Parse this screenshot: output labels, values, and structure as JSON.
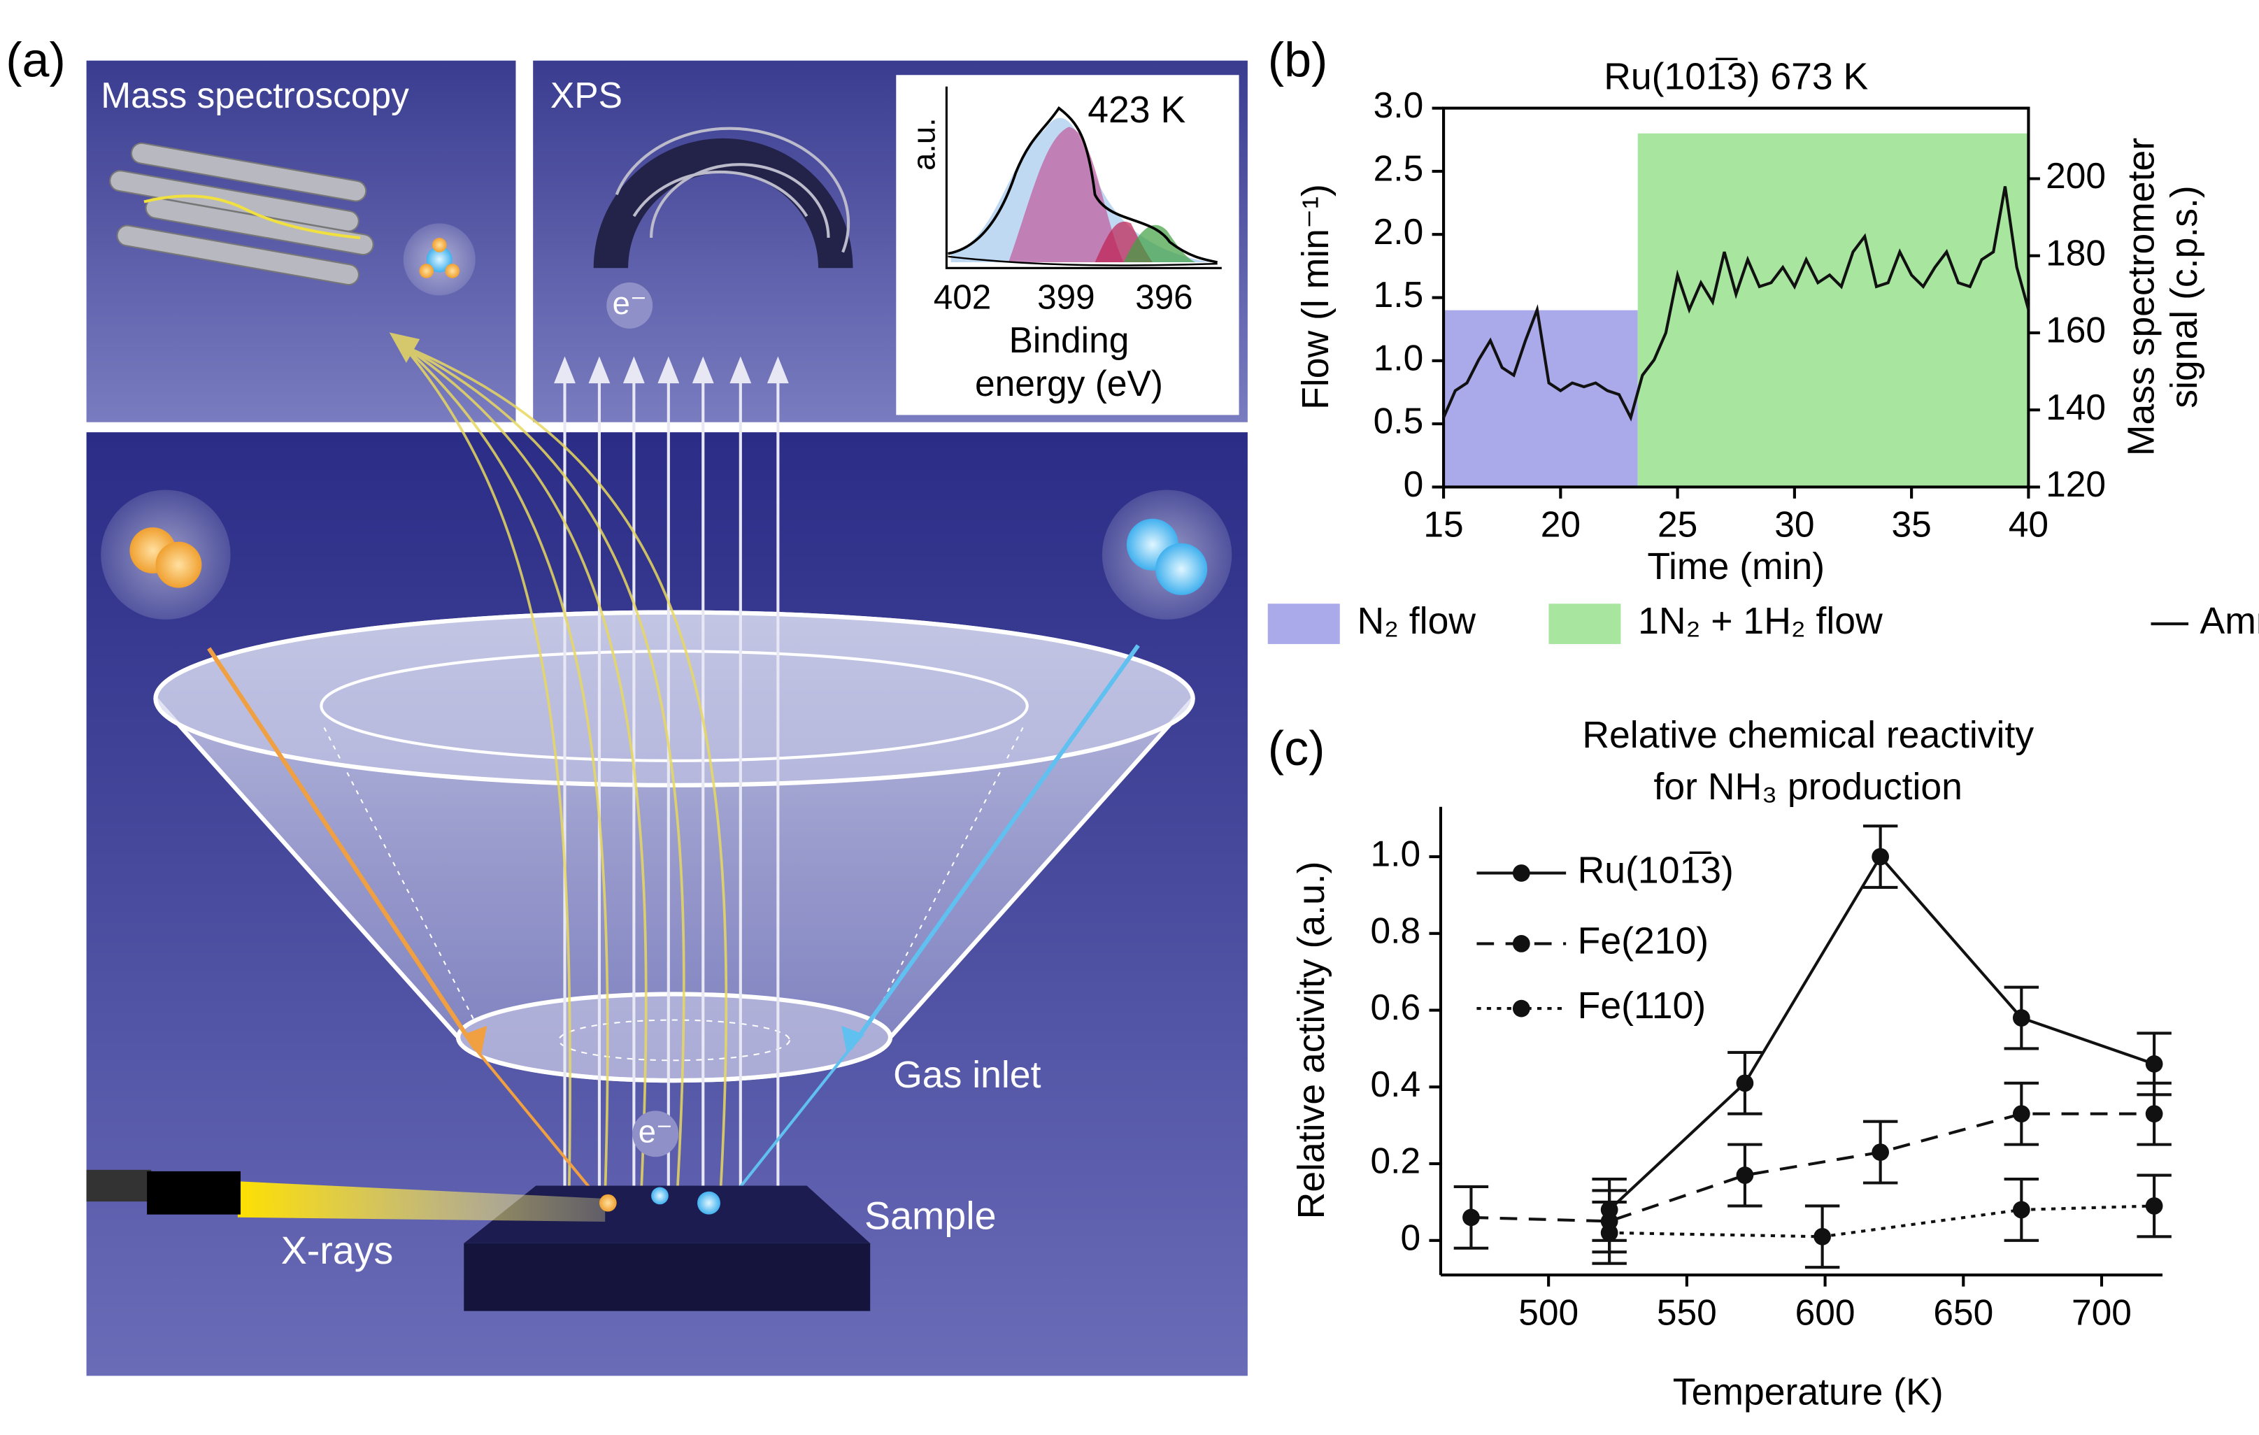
{
  "diagram": {
    "label": "(a)",
    "mass_spectroscopy": "Mass spectroscopy",
    "xps": "XPS",
    "inset_temperature": "423 K",
    "inset_ylabel": "a.u.",
    "inset_ticks": [
      "402",
      "399",
      "396"
    ],
    "inset_xlabel": [
      "Binding",
      "energy (eV)"
    ],
    "electron_top": "e⁻",
    "gas_inlet": "Gas inlet",
    "electron_bottom": "e⁻",
    "sample": "Sample",
    "xrays": "X-rays"
  },
  "chart_data": [
    {
      "type": "line",
      "label": "(b)",
      "title": "Ru(101̅3) 673 K",
      "xlabel": "Time (min)",
      "ylabel": "Flow (l min⁻¹)",
      "y2label": [
        "Mass spectrometer",
        "signal (c.p.s.)"
      ],
      "xlim": [
        15,
        40
      ],
      "xticks": [
        15,
        20,
        25,
        30,
        35,
        40
      ],
      "ylim": [
        0,
        3
      ],
      "yticks": [
        0,
        0.5,
        {
          "value": 1,
          "label": "1.0"
        },
        1.5,
        {
          "value": 2,
          "label": "2.0"
        },
        2.5,
        {
          "value": 3,
          "label": "3.0"
        }
      ],
      "y2lim": [
        120,
        218.3
      ],
      "y2ticks": [
        120,
        140,
        160,
        180,
        200
      ],
      "legend": "bottom",
      "bands": [
        {
          "name": "N₂ flow",
          "color": "#aaaaea",
          "x": [
            15,
            23.3
          ],
          "value": 1.4
        },
        {
          "name": "1N₂ + 1H₂ flow",
          "color": "#a8e6a0",
          "x": [
            23.3,
            40
          ],
          "value": 2.8
        }
      ],
      "series": [
        {
          "name": "Ammonia",
          "color": "#111111",
          "axis": "y2",
          "style": "solid",
          "x": [
            15,
            15.5,
            16,
            16.5,
            17,
            17.5,
            18,
            18.5,
            19,
            19.5,
            20,
            20.5,
            21,
            21.5,
            22,
            22.5,
            23,
            23.5,
            24,
            24.5,
            25,
            25.5,
            26,
            26.5,
            27,
            27.5,
            28,
            28.5,
            29,
            29.5,
            30,
            30.5,
            31,
            31.5,
            32,
            32.5,
            33,
            33.5,
            34,
            34.5,
            35,
            35.5,
            36,
            36.5,
            37,
            37.5,
            38,
            38.5,
            39,
            39.5,
            40
          ],
          "values": [
            138,
            145,
            147,
            153,
            158,
            151,
            149,
            158,
            166,
            147,
            145,
            147,
            146,
            147,
            145,
            144,
            138,
            149,
            153,
            160,
            175,
            166,
            173,
            168,
            181,
            170,
            179,
            172,
            173,
            177,
            172,
            179,
            173,
            175,
            172,
            181,
            185,
            172,
            173,
            181,
            175,
            172,
            177,
            181,
            173,
            172,
            179,
            181,
            198,
            177,
            166
          ]
        }
      ]
    },
    {
      "type": "line",
      "label": "(c)",
      "title": [
        "Relative chemical reactivity",
        "for NH₃ production"
      ],
      "xlabel": "Temperature (K)",
      "ylabel": "Relative activity (a.u.)",
      "xlim": [
        461,
        722
      ],
      "xticks": [
        500,
        550,
        600,
        650,
        700
      ],
      "ylim": [
        -0.09,
        1.13
      ],
      "yticks": [
        0,
        0.2,
        0.4,
        0.6,
        0.8,
        {
          "value": 1,
          "label": "1.0"
        }
      ],
      "legend": "upper left",
      "series": [
        {
          "name": "Ru(101̅3)",
          "color": "#111111",
          "style": "solid",
          "marker": true,
          "x": [
            522,
            571,
            620,
            671,
            719
          ],
          "values": [
            0.08,
            0.41,
            1.0,
            0.58,
            0.46
          ],
          "errors": [
            0.08,
            0.08,
            0.08,
            0.08,
            0.08
          ]
        },
        {
          "name": "Fe(210)",
          "color": "#111111",
          "style": "dashed",
          "marker": true,
          "x": [
            472,
            522,
            571,
            620,
            671,
            719
          ],
          "values": [
            0.06,
            0.05,
            0.17,
            0.23,
            0.33,
            0.33
          ],
          "errors": [
            0.08,
            0.08,
            0.08,
            0.08,
            0.08,
            0.08
          ]
        },
        {
          "name": "Fe(110)",
          "color": "#111111",
          "style": "dotted",
          "marker": true,
          "x": [
            522,
            599,
            671,
            719
          ],
          "values": [
            0.02,
            0.01,
            0.08,
            0.09
          ],
          "errors": [
            0.08,
            0.08,
            0.08,
            0.08
          ]
        }
      ]
    }
  ]
}
